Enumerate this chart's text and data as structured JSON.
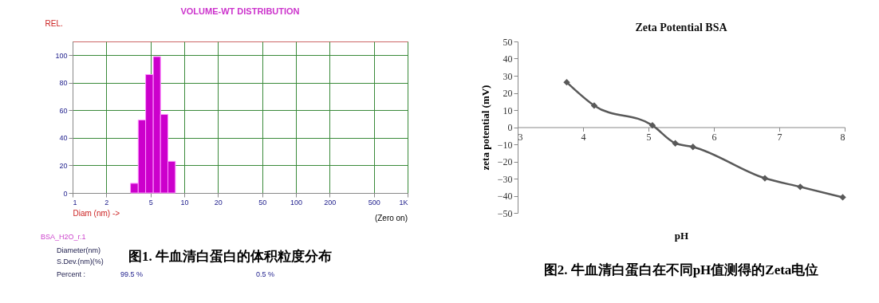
{
  "chart_data": [
    {
      "type": "histogram",
      "title": "VOLUME-WT DISTRIBUTION",
      "ylabel": "REL.",
      "xlabel": "Diam (nm) ->",
      "bins": [
        3.3,
        3.87,
        4.51,
        5.28,
        6.13,
        7.14,
        8.33
      ],
      "values": [
        7,
        53,
        86,
        99,
        57,
        23
      ],
      "color": "#cc00cc",
      "log": "x",
      "xlim": [
        1,
        1000
      ],
      "xticks": [
        1,
        2,
        5,
        10,
        20,
        50,
        100,
        200,
        500,
        {
          "value": 1000,
          "label": "1K"
        }
      ],
      "ylim": [
        0,
        110
      ],
      "yticks": [
        0,
        20,
        40,
        60,
        80,
        100
      ],
      "grid": true,
      "annotations": [
        "(Zero on)",
        "BSA_H2O_r.1",
        "Diameter(nm)",
        "S.Dev.(nm)(%)",
        "Percent :",
        "99.5 %",
        "0.5 %",
        "图1. 牛血清白蛋白的体积粒度分布"
      ]
    },
    {
      "type": "line",
      "title": "Zeta Potential BSA",
      "xlabel": "pH",
      "ylabel": "zeta potential (mV)",
      "x": [
        3.75,
        4.17,
        5.06,
        5.41,
        5.68,
        6.78,
        7.32,
        7.97
      ],
      "series": [
        {
          "color": "#595959",
          "values": [
            26.2,
            12.6,
            1.1,
            -9.4,
            -11.5,
            -29.8,
            -34.8,
            -40.9
          ]
        }
      ],
      "xlim": [
        3,
        8
      ],
      "xticks": [
        3,
        4,
        5,
        6,
        7,
        8
      ],
      "ylim": [
        -50,
        50
      ],
      "yticks": [
        -50,
        -40,
        -30,
        -20,
        -10,
        0,
        10,
        20,
        30,
        40,
        50
      ],
      "marker": "diamond",
      "line_style": "solid",
      "grid": false,
      "annotations": [
        "图2. 牛血清白蛋白在不同pH值测得的Zeta电位"
      ]
    }
  ]
}
